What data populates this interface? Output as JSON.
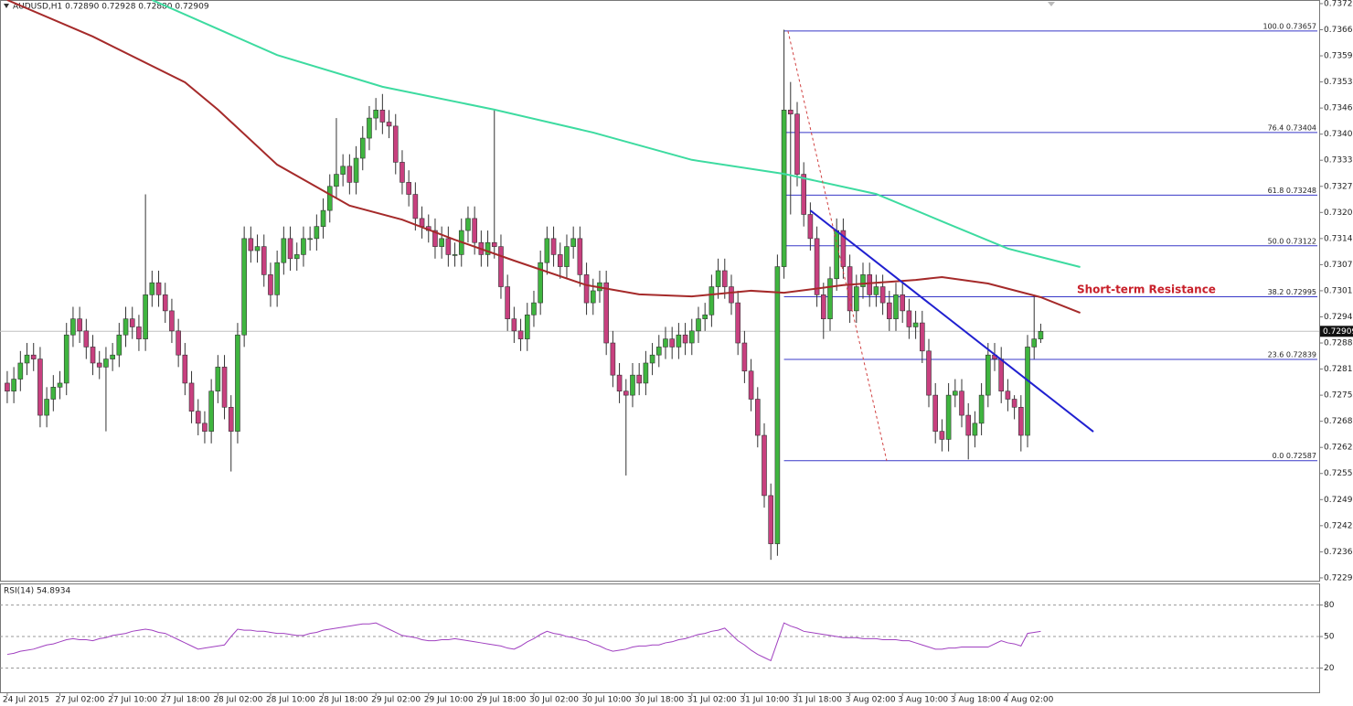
{
  "chart_data": [
    {
      "type": "candlestick",
      "header": "AUDUSD,H1 0.72890 0.72928 0.72880 0.72909",
      "annotation": "Short-term Resistance",
      "bull_color": "#3fb53f",
      "bear_color": "#c8407f",
      "xlim": [
        -1.1,
        199.3
      ],
      "xticks": [
        {
          "value": 0,
          "label": "24 Jul 2015"
        },
        {
          "value": 8,
          "label": "27 Jul 02:00"
        },
        {
          "value": 16,
          "label": "27 Jul 10:00"
        },
        {
          "value": 24,
          "label": "27 Jul 18:00"
        },
        {
          "value": 32,
          "label": "28 Jul 02:00"
        },
        {
          "value": 40,
          "label": "28 Jul 10:00"
        },
        {
          "value": 48,
          "label": "28 Jul 18:00"
        },
        {
          "value": 56,
          "label": "29 Jul 02:00"
        },
        {
          "value": 64,
          "label": "29 Jul 10:00"
        },
        {
          "value": 72,
          "label": "29 Jul 18:00"
        },
        {
          "value": 80,
          "label": "30 Jul 02:00"
        },
        {
          "value": 88,
          "label": "30 Jul 10:00"
        },
        {
          "value": 96,
          "label": "30 Jul 18:00"
        },
        {
          "value": 104,
          "label": "31 Jul 02:00"
        },
        {
          "value": 112,
          "label": "31 Jul 10:00"
        },
        {
          "value": 120,
          "label": "31 Jul 18:00"
        },
        {
          "value": 128,
          "label": "3 Aug 02:00"
        },
        {
          "value": 136,
          "label": "3 Aug 10:00"
        },
        {
          "value": 144,
          "label": "3 Aug 18:00"
        },
        {
          "value": 152,
          "label": "4 Aug 02:00"
        }
      ],
      "ylim": [
        0.72288,
        0.73734
      ],
      "yticks": [
        0.73725,
        {
          "value": 0.7366,
          "label": "0.73660"
        },
        0.73595,
        {
          "value": 0.7353,
          "label": "0.73530"
        },
        0.73465,
        {
          "value": 0.734,
          "label": "0.73400"
        },
        0.73335,
        {
          "value": 0.7327,
          "label": "0.73270"
        },
        0.73205,
        {
          "value": 0.7314,
          "label": "0.73140"
        },
        0.73075,
        {
          "value": 0.7301,
          "label": "0.73010"
        },
        0.72945,
        {
          "value": 0.7288,
          "label": "0.72880"
        },
        0.72815,
        {
          "value": 0.7275,
          "label": "0.72750"
        },
        0.72685,
        {
          "value": 0.7262,
          "label": "0.72620"
        },
        0.72555,
        {
          "value": 0.7249,
          "label": "0.72490"
        },
        0.72425,
        {
          "value": 0.7236,
          "label": "0.72360"
        },
        0.72295
      ],
      "current_price": 0.72909,
      "open": [
        0.7278,
        0.7276,
        0.7279,
        0.7283,
        0.7285,
        0.7284,
        0.727,
        0.7274,
        0.7277,
        0.7278,
        0.729,
        0.7294,
        0.7291,
        0.7287,
        0.7283,
        0.7282,
        0.7284,
        0.7285,
        0.729,
        0.7294,
        0.7292,
        0.7289,
        0.73,
        0.7303,
        0.73,
        0.7296,
        0.7291,
        0.7285,
        0.7278,
        0.7271,
        0.7268,
        0.7266,
        0.7276,
        0.7282,
        0.7272,
        0.7266,
        0.729,
        0.7314,
        0.7311,
        0.7312,
        0.7305,
        0.73,
        0.7308,
        0.7314,
        0.7309,
        0.731,
        0.7314,
        0.7314,
        0.7317,
        0.7321,
        0.7327,
        0.733,
        0.7332,
        0.7328,
        0.7334,
        0.7339,
        0.7344,
        0.7346,
        0.7343,
        0.7342,
        0.7333,
        0.7328,
        0.7325,
        0.7319,
        0.7317,
        0.7316,
        0.7312,
        0.7314,
        0.731,
        0.731,
        0.7316,
        0.7319,
        0.7313,
        0.731,
        0.7313,
        0.7312,
        0.7302,
        0.7294,
        0.7291,
        0.7289,
        0.7295,
        0.7298,
        0.7308,
        0.7314,
        0.731,
        0.7307,
        0.7312,
        0.7314,
        0.7305,
        0.7298,
        0.7301,
        0.7303,
        0.7288,
        0.728,
        0.7276,
        0.7275,
        0.728,
        0.7278,
        0.7283,
        0.7285,
        0.7287,
        0.7289,
        0.7287,
        0.729,
        0.7288,
        0.7291,
        0.7294,
        0.7295,
        0.7302,
        0.7306,
        0.7302,
        0.7298,
        0.7288,
        0.7281,
        0.7274,
        0.7265,
        0.725,
        0.7238,
        0.7307,
        0.7346,
        0.7345,
        0.733,
        0.732,
        0.7314,
        0.73,
        0.7294,
        0.7304,
        0.7316,
        0.7307,
        0.7296,
        0.7302,
        0.7305,
        0.73,
        0.7302,
        0.7298,
        0.7294,
        0.73,
        0.7296,
        0.7292,
        0.7293,
        0.7286,
        0.7275,
        0.7266,
        0.7264,
        0.7275,
        0.7276,
        0.727,
        0.7265,
        0.7268,
        0.7275,
        0.7285,
        0.7284,
        0.7276,
        0.7274,
        0.7272,
        0.7265,
        0.7287,
        0.7289
      ],
      "high": [
        0.7281,
        0.7282,
        0.7286,
        0.7288,
        0.7288,
        0.7287,
        0.7277,
        0.728,
        0.7281,
        0.7293,
        0.7297,
        0.7297,
        0.7294,
        0.729,
        0.7286,
        0.7287,
        0.7288,
        0.7293,
        0.7297,
        0.7297,
        0.7295,
        0.7325,
        0.7306,
        0.7306,
        0.7303,
        0.7299,
        0.7294,
        0.7288,
        0.7281,
        0.7274,
        0.7271,
        0.7279,
        0.7285,
        0.7285,
        0.7275,
        0.7293,
        0.7317,
        0.7317,
        0.7315,
        0.7315,
        0.7308,
        0.7311,
        0.7317,
        0.7317,
        0.7313,
        0.7317,
        0.7317,
        0.732,
        0.7324,
        0.733,
        0.7344,
        0.7335,
        0.7335,
        0.7337,
        0.7342,
        0.7347,
        0.7349,
        0.735,
        0.7346,
        0.7345,
        0.7336,
        0.7331,
        0.7328,
        0.7322,
        0.732,
        0.7319,
        0.7317,
        0.7317,
        0.7313,
        0.7319,
        0.7322,
        0.7322,
        0.7316,
        0.7316,
        0.7346,
        0.7315,
        0.7305,
        0.7297,
        0.7294,
        0.7298,
        0.7301,
        0.7311,
        0.7317,
        0.7317,
        0.7313,
        0.7315,
        0.7317,
        0.7317,
        0.7308,
        0.7304,
        0.7306,
        0.7306,
        0.7291,
        0.7283,
        0.7279,
        0.7283,
        0.7283,
        0.7286,
        0.7288,
        0.729,
        0.7292,
        0.7292,
        0.7293,
        0.7293,
        0.7294,
        0.7297,
        0.7298,
        0.7305,
        0.7309,
        0.7309,
        0.7305,
        0.7301,
        0.7291,
        0.7284,
        0.7277,
        0.7268,
        0.7253,
        0.731,
        0.7366,
        0.7353,
        0.7348,
        0.7333,
        0.7323,
        0.7317,
        0.7303,
        0.7307,
        0.7319,
        0.7319,
        0.731,
        0.7305,
        0.7308,
        0.7308,
        0.7305,
        0.7305,
        0.7301,
        0.7303,
        0.7303,
        0.7299,
        0.7296,
        0.7296,
        0.7289,
        0.7278,
        0.7269,
        0.7278,
        0.7279,
        0.7279,
        0.7273,
        0.7271,
        0.7278,
        0.7288,
        0.7288,
        0.7287,
        0.7279,
        0.7275,
        0.7275,
        0.729,
        0.73,
        0.72928
      ],
      "low": [
        0.7273,
        0.7273,
        0.7276,
        0.728,
        0.7281,
        0.7267,
        0.7267,
        0.7271,
        0.7274,
        0.7275,
        0.7287,
        0.7288,
        0.7284,
        0.728,
        0.7279,
        0.7266,
        0.7281,
        0.7282,
        0.7287,
        0.7289,
        0.7286,
        0.7286,
        0.7297,
        0.7297,
        0.7293,
        0.7288,
        0.7282,
        0.7275,
        0.7268,
        0.7265,
        0.7263,
        0.7263,
        0.7273,
        0.7269,
        0.7256,
        0.7263,
        0.7287,
        0.7308,
        0.7308,
        0.7302,
        0.7297,
        0.7297,
        0.7305,
        0.7306,
        0.7306,
        0.7307,
        0.7311,
        0.7311,
        0.7314,
        0.7318,
        0.7324,
        0.7327,
        0.7325,
        0.7325,
        0.7331,
        0.7336,
        0.7341,
        0.734,
        0.7339,
        0.733,
        0.7325,
        0.7322,
        0.7316,
        0.7314,
        0.7313,
        0.7309,
        0.7309,
        0.7307,
        0.7307,
        0.7307,
        0.7313,
        0.731,
        0.7307,
        0.7307,
        0.7309,
        0.7299,
        0.7291,
        0.7288,
        0.7286,
        0.7286,
        0.7292,
        0.7295,
        0.7305,
        0.7307,
        0.7304,
        0.7304,
        0.7309,
        0.7302,
        0.7295,
        0.7295,
        0.7298,
        0.7285,
        0.7277,
        0.7273,
        0.7255,
        0.7272,
        0.7275,
        0.7275,
        0.728,
        0.7282,
        0.7284,
        0.7284,
        0.7284,
        0.7285,
        0.7285,
        0.7288,
        0.7291,
        0.7292,
        0.7299,
        0.7299,
        0.7295,
        0.7285,
        0.7278,
        0.7271,
        0.7262,
        0.7247,
        0.7234,
        0.7235,
        0.7304,
        0.732,
        0.7327,
        0.7317,
        0.7311,
        0.7297,
        0.7289,
        0.7291,
        0.7301,
        0.7304,
        0.7293,
        0.7293,
        0.7299,
        0.7297,
        0.7297,
        0.7295,
        0.7291,
        0.7291,
        0.7293,
        0.7289,
        0.7289,
        0.7283,
        0.7272,
        0.7263,
        0.7261,
        0.7261,
        0.7272,
        0.7267,
        0.7259,
        0.7262,
        0.7265,
        0.7272,
        0.7281,
        0.7273,
        0.7271,
        0.7269,
        0.7261,
        0.7262,
        0.7284,
        0.7288
      ],
      "close": [
        0.7276,
        0.7279,
        0.7283,
        0.7285,
        0.7284,
        0.727,
        0.7274,
        0.7277,
        0.7278,
        0.729,
        0.7294,
        0.7291,
        0.7287,
        0.7283,
        0.7282,
        0.7284,
        0.7285,
        0.729,
        0.7294,
        0.7292,
        0.7289,
        0.73,
        0.7303,
        0.73,
        0.7296,
        0.7291,
        0.7285,
        0.7278,
        0.7271,
        0.7268,
        0.7266,
        0.7276,
        0.7282,
        0.7272,
        0.7266,
        0.729,
        0.7314,
        0.7311,
        0.7312,
        0.7305,
        0.73,
        0.7308,
        0.7314,
        0.7309,
        0.731,
        0.7314,
        0.7314,
        0.7317,
        0.7321,
        0.7327,
        0.733,
        0.7332,
        0.7328,
        0.7334,
        0.7339,
        0.7344,
        0.7346,
        0.7343,
        0.7342,
        0.7333,
        0.7328,
        0.7325,
        0.7319,
        0.7317,
        0.7316,
        0.7312,
        0.7314,
        0.731,
        0.731,
        0.7316,
        0.7319,
        0.7313,
        0.731,
        0.7313,
        0.7312,
        0.7302,
        0.7294,
        0.7291,
        0.7289,
        0.7295,
        0.7298,
        0.7308,
        0.7314,
        0.731,
        0.7307,
        0.7312,
        0.7314,
        0.7305,
        0.7298,
        0.7301,
        0.7303,
        0.7288,
        0.728,
        0.7276,
        0.7275,
        0.728,
        0.7278,
        0.7283,
        0.7285,
        0.7287,
        0.7289,
        0.7287,
        0.729,
        0.7288,
        0.7291,
        0.7294,
        0.7295,
        0.7302,
        0.7306,
        0.7302,
        0.7298,
        0.7288,
        0.7281,
        0.7274,
        0.7265,
        0.725,
        0.7238,
        0.7307,
        0.7346,
        0.7345,
        0.733,
        0.732,
        0.7314,
        0.73,
        0.7294,
        0.7304,
        0.7316,
        0.7307,
        0.7296,
        0.7302,
        0.7305,
        0.73,
        0.7302,
        0.7298,
        0.7294,
        0.73,
        0.7296,
        0.7292,
        0.7293,
        0.7286,
        0.7275,
        0.7266,
        0.7264,
        0.7275,
        0.7276,
        0.727,
        0.7265,
        0.7268,
        0.7275,
        0.7285,
        0.7284,
        0.7276,
        0.7274,
        0.7272,
        0.7265,
        0.7287,
        0.7289,
        0.72909
      ],
      "lines": [
        {
          "color": "#3ddba0",
          "x": [
            22,
            41,
            57,
            74,
            89,
            104,
            118,
            132,
            143,
            152,
            163
          ],
          "values": [
            0.73734,
            0.73597,
            0.73518,
            0.73461,
            0.73404,
            0.73336,
            0.73301,
            0.73251,
            0.73176,
            0.73115,
            0.73069
          ]
        },
        {
          "color": "#a52a2a",
          "x": [
            0,
            13,
            27,
            32,
            41,
            52,
            60,
            68,
            77,
            88,
            96,
            104,
            113,
            118,
            127,
            138,
            142,
            149,
            157,
            163
          ],
          "values": [
            0.73734,
            0.73643,
            0.73529,
            0.73461,
            0.73324,
            0.73222,
            0.73187,
            0.73137,
            0.73085,
            0.73024,
            0.73001,
            0.72996,
            0.7301,
            0.73005,
            0.73024,
            0.73037,
            0.73044,
            0.73028,
            0.72994,
            0.72955
          ]
        },
        {
          "color": "#2020d0",
          "x": [
            122,
            165
          ],
          "values": [
            0.7321,
            0.72659
          ]
        },
        {
          "color": "#d04040",
          "dash": true,
          "x": [
            118.6,
            133.6
          ],
          "values": [
            0.73657,
            0.72587
          ]
        }
      ],
      "fib_color": "#3838c8",
      "fib_start": 118,
      "fib_levels": [
        {
          "value": 0.73657,
          "label": "100.0 0.73657"
        },
        {
          "value": 0.73404,
          "label": "76.4 0.73404"
        },
        {
          "value": 0.73248,
          "label": "61.8 0.73248"
        },
        {
          "value": 0.73122,
          "label": "50.0 0.73122"
        },
        {
          "value": 0.72995,
          "label": "38.2 0.72995"
        },
        {
          "value": 0.72839,
          "label": "23.6 0.72839"
        },
        {
          "value": 0.72587,
          "label": "0.0 0.72587"
        }
      ]
    },
    {
      "type": "line",
      "title": "RSI(14) 54.8934",
      "color": "#a040c0",
      "ylim": [
        -3.1,
        99.7
      ],
      "yticks": [
        80,
        50,
        20
      ],
      "values": [
        33,
        34,
        36,
        37,
        38,
        40,
        42,
        43,
        45,
        47,
        48,
        47,
        47,
        46,
        48,
        49,
        51,
        52,
        53,
        55,
        56,
        57,
        56,
        54,
        53,
        50,
        47,
        44,
        41,
        38,
        39,
        40,
        41,
        42,
        50,
        57,
        56,
        56,
        55,
        55,
        54,
        53,
        53,
        52,
        51,
        51,
        53,
        54,
        56,
        57,
        58,
        59,
        60,
        61,
        62,
        62,
        63,
        60,
        57,
        54,
        51,
        50,
        49,
        47,
        46,
        46,
        47,
        47,
        48,
        47,
        46,
        45,
        44,
        43,
        42,
        41,
        39,
        38,
        41,
        45,
        48,
        52,
        55,
        53,
        52,
        50,
        49,
        47,
        46,
        43,
        41,
        38,
        36,
        37,
        38,
        40,
        41,
        41,
        42,
        42,
        44,
        45,
        47,
        48,
        50,
        52,
        53,
        55,
        56,
        58,
        52,
        46,
        42,
        37,
        33,
        30,
        27,
        45,
        63,
        60,
        58,
        55,
        54,
        53,
        52,
        51,
        50,
        49,
        49,
        49,
        48,
        48,
        48,
        47,
        47,
        47,
        46,
        46,
        44,
        42,
        40,
        38,
        38,
        39,
        39,
        40,
        40,
        40,
        40,
        40,
        43,
        46,
        44,
        43,
        41,
        53,
        54,
        54.8934
      ]
    }
  ]
}
